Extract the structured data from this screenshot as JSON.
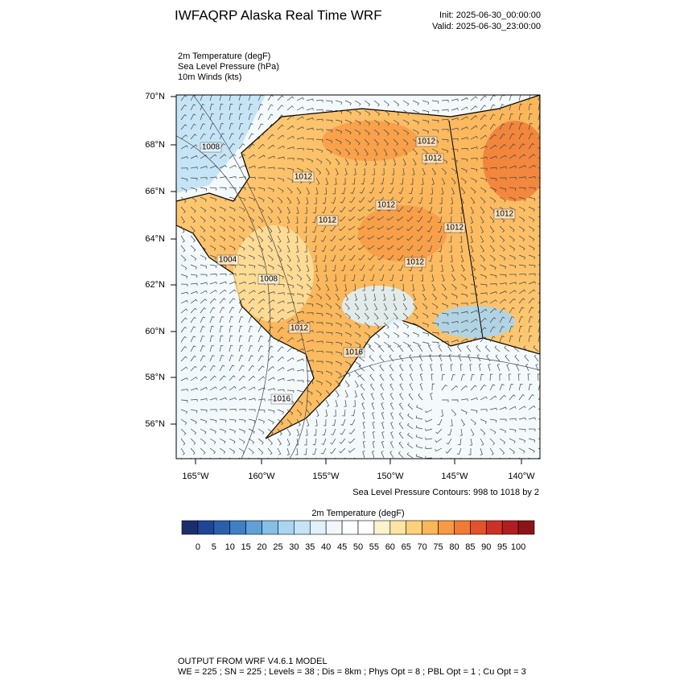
{
  "header": {
    "title": "IWFAQRP Alaska Real Time WRF",
    "init": "Init: 2025-06-30_00:00:00",
    "valid": "Valid: 2025-06-30_23:00:00"
  },
  "fields": [
    "2m Temperature   (degF)",
    "Sea Level Pressure   (hPa)",
    "10m Winds   (kts)"
  ],
  "map": {
    "lat_labels": [
      "70°N",
      "68°N",
      "66°N",
      "64°N",
      "62°N",
      "60°N",
      "58°N",
      "56°N"
    ],
    "lon_labels": [
      "165°W",
      "160°W",
      "155°W",
      "150°W",
      "145°W",
      "140°W"
    ],
    "contour_labels": [
      "1008",
      "1012",
      "1012",
      "1012",
      "1012",
      "1012",
      "1012",
      "1012",
      "1004",
      "1008",
      "1012",
      "1012",
      "1016",
      "1016"
    ],
    "contour_note": "Sea Level Pressure Contours: 998 to 1018 by 2"
  },
  "colorbar": {
    "title": "2m Temperature  (degF)",
    "colors": [
      "#1a2e6e",
      "#1f4596",
      "#2b5fae",
      "#3f7fc4",
      "#5fa0d8",
      "#85bfe8",
      "#a8d6f2",
      "#c5e5f6",
      "#dff1fa",
      "#f0f8fc",
      "#ffffff",
      "#ffffff",
      "#fff2cf",
      "#fee3a3",
      "#fdd07c",
      "#fbb65a",
      "#f89a43",
      "#f07b34",
      "#e2532b",
      "#cc3226",
      "#b01d22",
      "#8c1418"
    ],
    "labels": [
      "0",
      "5",
      "10",
      "15",
      "20",
      "25",
      "30",
      "35",
      "40",
      "45",
      "50",
      "55",
      "60",
      "65",
      "70",
      "75",
      "80",
      "85",
      "90",
      "95",
      "100"
    ]
  },
  "footer": {
    "line1": "OUTPUT FROM WRF V4.6.1 MODEL",
    "line2": "WE = 225 ; SN = 225 ; Levels = 38 ; Dis = 8km ; Phys Opt = 8 ; PBL Opt = 1 ; Cu Opt = 3"
  }
}
